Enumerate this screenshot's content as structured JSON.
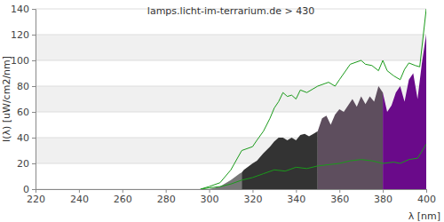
{
  "chart_data": {
    "type": "area",
    "title": "lamps.licht-im-terrarium.de > 430",
    "x_label": "λ [nm]",
    "y_label": "I(λ)  [uW/cm2/nm]",
    "xlim": [
      220,
      400
    ],
    "ylim": [
      0,
      140
    ],
    "xticks": [
      220,
      240,
      260,
      280,
      300,
      320,
      340,
      360,
      380,
      400
    ],
    "yticks": [
      0,
      20,
      40,
      60,
      80,
      100,
      120,
      140
    ],
    "grid": true,
    "series": [
      {
        "type": "area",
        "color": "#777777",
        "x": [
          296,
          300,
          305,
          310,
          314,
          315
        ],
        "values": [
          0,
          0,
          2,
          7,
          12,
          13
        ]
      },
      {
        "type": "area",
        "color": "#333333",
        "x": [
          315,
          316,
          320,
          322,
          325,
          328,
          330,
          332,
          334,
          336,
          338,
          340,
          342,
          344,
          346,
          348,
          350
        ],
        "values": [
          13,
          15,
          20,
          22,
          28,
          33,
          37,
          40,
          40,
          38,
          40,
          38,
          42,
          43,
          41,
          43,
          45
        ]
      },
      {
        "type": "area",
        "color": "#5e4e5e",
        "x": [
          350,
          352,
          354,
          356,
          358,
          360,
          362,
          364,
          366,
          368,
          370,
          372,
          374,
          376,
          378,
          380
        ],
        "values": [
          45,
          55,
          57,
          50,
          58,
          62,
          60,
          65,
          70,
          64,
          72,
          66,
          72,
          68,
          80,
          75
        ]
      },
      {
        "type": "area",
        "color": "#6a0a8a",
        "x": [
          380,
          382,
          384,
          386,
          388,
          390,
          392,
          394,
          396,
          398,
          400
        ],
        "values": [
          75,
          60,
          65,
          75,
          80,
          68,
          85,
          90,
          70,
          98,
          120
        ]
      },
      {
        "type": "line",
        "color": "#1a9a1a",
        "x": [
          296,
          300,
          305,
          310,
          315,
          320,
          322,
          325,
          328,
          330,
          332,
          334,
          336,
          338,
          340,
          342,
          345,
          348,
          350,
          355,
          358,
          360,
          365,
          370,
          372,
          375,
          378,
          380,
          382,
          385,
          388,
          390,
          392,
          395,
          397,
          400
        ],
        "values": [
          0,
          2,
          5,
          15,
          30,
          33,
          38,
          45,
          55,
          63,
          68,
          75,
          72,
          73,
          70,
          77,
          75,
          78,
          80,
          83,
          80,
          85,
          97,
          100,
          97,
          96,
          92,
          100,
          92,
          88,
          85,
          93,
          98,
          96,
          95,
          140
        ]
      },
      {
        "type": "line",
        "color": "#1a9a1a",
        "x": [
          296,
          300,
          305,
          310,
          315,
          320,
          325,
          330,
          335,
          340,
          345,
          350,
          355,
          360,
          365,
          370,
          375,
          380,
          385,
          388,
          392,
          396,
          400
        ],
        "values": [
          0,
          1,
          2,
          4,
          7,
          9,
          12,
          15,
          14,
          17,
          16,
          18,
          19,
          20,
          22,
          23,
          22,
          20,
          21,
          20,
          23,
          24,
          35
        ]
      }
    ]
  }
}
